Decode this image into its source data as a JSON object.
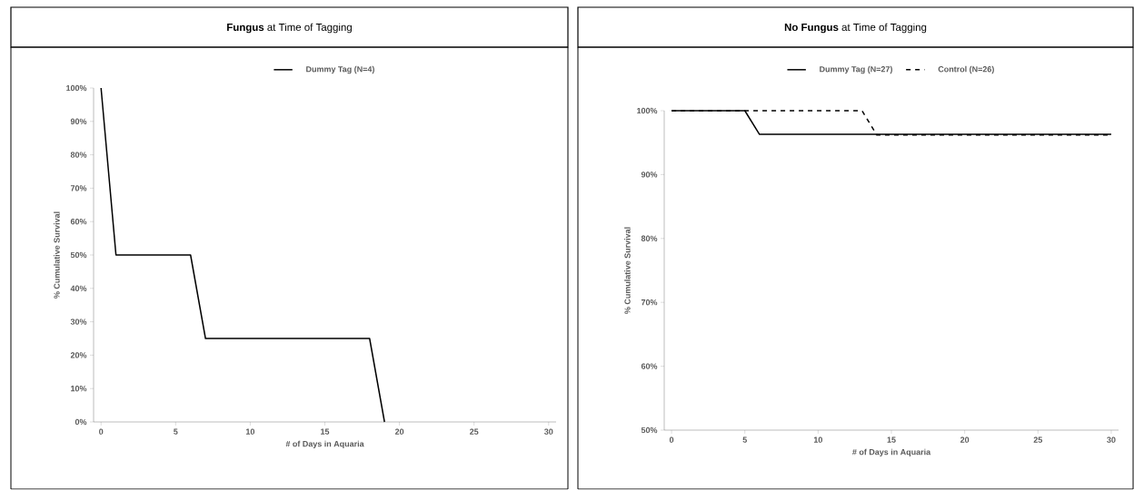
{
  "chart_data": [
    {
      "type": "line",
      "title": "**Fungus** at Time of Tagging",
      "xlabel": "# of Days in Aquaria",
      "ylabel": "% Cumulative Survival",
      "legend": "top",
      "xlim": [
        -0.5,
        30.5
      ],
      "xticks": [
        0,
        5,
        10,
        15,
        20,
        25,
        30
      ],
      "ylim": [
        0,
        100
      ],
      "yticks": [
        {
          "value": 0,
          "label": "0%"
        },
        {
          "value": 10,
          "label": "10%"
        },
        {
          "value": 20,
          "label": "20%"
        },
        {
          "value": 30,
          "label": "30%"
        },
        {
          "value": 40,
          "label": "40%"
        },
        {
          "value": 50,
          "label": "50%"
        },
        {
          "value": 60,
          "label": "60%"
        },
        {
          "value": 70,
          "label": "70%"
        },
        {
          "value": 80,
          "label": "80%"
        },
        {
          "value": 90,
          "label": "90%"
        },
        {
          "value": 100,
          "label": "100%"
        }
      ],
      "series": [
        {
          "name": "Dummy Tag (N=4)",
          "color": "#000000",
          "line_style": "solid",
          "x": [
            0,
            1,
            6,
            7,
            18,
            19
          ],
          "values": [
            100,
            50,
            50,
            25,
            25,
            0
          ]
        }
      ]
    },
    {
      "type": "line",
      "title": "**No Fungus** at Time of Tagging",
      "xlabel": "# of Days in Aquaria",
      "ylabel": "% Cumulative Survival",
      "legend": "top",
      "xlim": [
        -0.5,
        30.5
      ],
      "xticks": [
        0,
        5,
        10,
        15,
        20,
        25,
        30
      ],
      "ylim": [
        50,
        100
      ],
      "yticks": [
        {
          "value": 50,
          "label": "50%"
        },
        {
          "value": 60,
          "label": "60%"
        },
        {
          "value": 70,
          "label": "70%"
        },
        {
          "value": 80,
          "label": "80%"
        },
        {
          "value": 90,
          "label": "90%"
        },
        {
          "value": 100,
          "label": "100%"
        }
      ],
      "series": [
        {
          "name": "Dummy Tag (N=27)",
          "color": "#000000",
          "line_style": "solid",
          "x": [
            0,
            5,
            6,
            30
          ],
          "values": [
            100,
            100,
            96.3,
            96.3
          ]
        },
        {
          "name": "Control (N=26)",
          "color": "#000000",
          "line_style": "dashed",
          "x": [
            0,
            13,
            14,
            30
          ],
          "values": [
            100,
            100,
            96.2,
            96.2
          ]
        }
      ]
    }
  ]
}
